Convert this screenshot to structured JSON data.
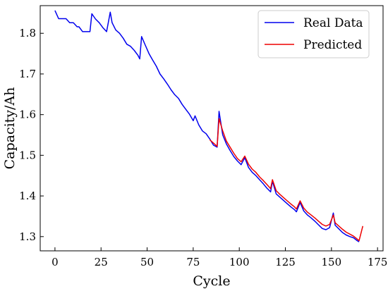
{
  "chart_data": {
    "type": "line",
    "xlabel": "Cycle",
    "ylabel": "Capacity/Ah",
    "xlim": [
      -8,
      178
    ],
    "ylim": [
      1.265,
      1.868
    ],
    "xticks": [
      0,
      25,
      50,
      75,
      100,
      125,
      150,
      175
    ],
    "yticks": [
      1.3,
      1.4,
      1.5,
      1.6,
      1.7,
      1.8
    ],
    "grid": false,
    "legend_position": "top-right",
    "series": [
      {
        "name": "Real Data",
        "color": "#0000ee",
        "x": [
          0,
          2,
          3,
          5,
          6,
          8,
          10,
          12,
          13,
          15,
          17,
          19,
          20,
          22,
          24,
          26,
          28,
          30,
          31,
          33,
          35,
          37,
          39,
          41,
          43,
          45,
          46,
          47,
          49,
          51,
          53,
          55,
          57,
          59,
          61,
          63,
          65,
          67,
          69,
          71,
          73,
          75,
          76,
          78,
          80,
          82,
          84,
          86,
          88,
          89,
          91,
          93,
          95,
          97,
          99,
          101,
          103,
          105,
          107,
          109,
          111,
          113,
          115,
          117,
          118,
          120,
          122,
          124,
          126,
          128,
          130,
          131,
          133,
          135,
          137,
          139,
          141,
          143,
          145,
          147,
          149,
          151,
          152,
          154,
          156,
          158,
          160,
          162,
          164,
          165
        ],
        "y": [
          1.856,
          1.836,
          1.836,
          1.836,
          1.836,
          1.826,
          1.826,
          1.816,
          1.816,
          1.804,
          1.804,
          1.804,
          1.848,
          1.835,
          1.826,
          1.814,
          1.804,
          1.852,
          1.826,
          1.808,
          1.8,
          1.788,
          1.773,
          1.768,
          1.758,
          1.746,
          1.737,
          1.792,
          1.771,
          1.75,
          1.734,
          1.719,
          1.7,
          1.688,
          1.675,
          1.661,
          1.649,
          1.64,
          1.625,
          1.613,
          1.601,
          1.585,
          1.597,
          1.575,
          1.56,
          1.553,
          1.54,
          1.525,
          1.52,
          1.608,
          1.55,
          1.528,
          1.512,
          1.497,
          1.486,
          1.477,
          1.494,
          1.47,
          1.458,
          1.45,
          1.44,
          1.43,
          1.419,
          1.41,
          1.436,
          1.405,
          1.397,
          1.389,
          1.381,
          1.373,
          1.366,
          1.361,
          1.384,
          1.363,
          1.353,
          1.346,
          1.338,
          1.329,
          1.32,
          1.317,
          1.322,
          1.358,
          1.328,
          1.319,
          1.31,
          1.304,
          1.3,
          1.297,
          1.29,
          1.287
        ]
      },
      {
        "name": "Predicted",
        "color": "#ee0000",
        "x": [
          84,
          86,
          88,
          89,
          91,
          93,
          95,
          97,
          99,
          101,
          103,
          105,
          107,
          109,
          111,
          113,
          115,
          117,
          118,
          120,
          122,
          124,
          126,
          128,
          130,
          131,
          133,
          135,
          137,
          139,
          141,
          143,
          145,
          147,
          149,
          151,
          152,
          154,
          156,
          158,
          160,
          162,
          164,
          165,
          167
        ],
        "y": [
          1.538,
          1.53,
          1.522,
          1.59,
          1.56,
          1.535,
          1.52,
          1.505,
          1.492,
          1.484,
          1.498,
          1.478,
          1.466,
          1.458,
          1.447,
          1.438,
          1.428,
          1.418,
          1.44,
          1.413,
          1.404,
          1.396,
          1.388,
          1.38,
          1.373,
          1.368,
          1.388,
          1.37,
          1.36,
          1.353,
          1.346,
          1.338,
          1.33,
          1.326,
          1.33,
          1.353,
          1.334,
          1.326,
          1.318,
          1.311,
          1.306,
          1.301,
          1.294,
          1.29,
          1.326
        ]
      }
    ]
  }
}
